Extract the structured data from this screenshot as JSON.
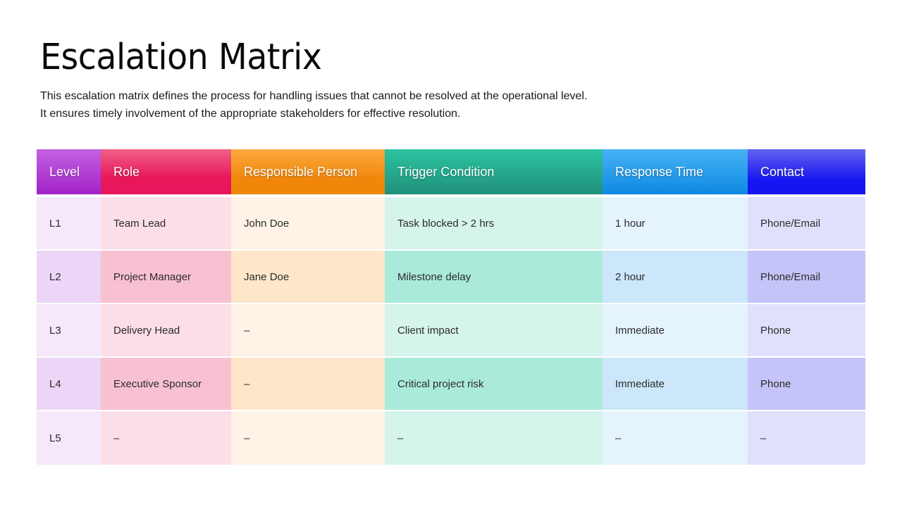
{
  "page": {
    "title": "Escalation Matrix",
    "description_lines": [
      "This escalation matrix defines the process for handling issues that cannot be resolved at the operational level.",
      "It ensures timely involvement of the appropriate stakeholders for effective resolution."
    ]
  },
  "table": {
    "columns": [
      {
        "label": "Level",
        "color": "#a223c8"
      },
      {
        "label": "Role",
        "color": "#e8165a"
      },
      {
        "label": "Responsible Person",
        "color": "#f0870b"
      },
      {
        "label": "Trigger Condition",
        "color": "#20907a"
      },
      {
        "label": "Response Time",
        "color": "#0d89e2"
      },
      {
        "label": "Contact",
        "color": "#1515f1"
      }
    ],
    "rows": [
      {
        "level": "L1",
        "role": "Team Lead",
        "person": "John Doe",
        "trigger": "Task blocked > 2 hrs",
        "time": "1 hour",
        "contact": "Phone/Email"
      },
      {
        "level": "L2",
        "role": "Project Manager",
        "person": "Jane Doe",
        "trigger": "Milestone delay",
        "time": "2 hour",
        "contact": "Phone/Email"
      },
      {
        "level": "L3",
        "role": "Delivery Head",
        "person": "–",
        "trigger": "Client impact",
        "time": "Immediate",
        "contact": "Phone"
      },
      {
        "level": "L4",
        "role": "Executive Sponsor",
        "person": "–",
        "trigger": "Critical project risk",
        "time": "Immediate",
        "contact": "Phone"
      },
      {
        "level": "L5",
        "role": "–",
        "person": "–",
        "trigger": "–",
        "time": "–",
        "contact": "–"
      }
    ]
  }
}
